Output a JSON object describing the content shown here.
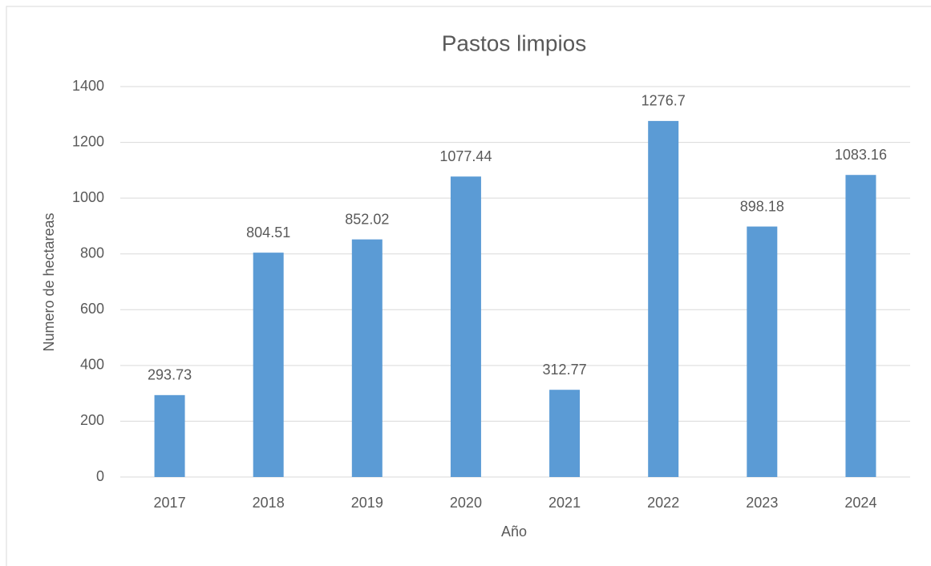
{
  "chart_data": {
    "type": "bar",
    "title": "Pastos limpios",
    "x_label": "Año",
    "y_label": "Numero de hectareas",
    "categories": [
      "2017",
      "2018",
      "2019",
      "2020",
      "2021",
      "2022",
      "2023",
      "2024"
    ],
    "values": [
      293.73,
      804.51,
      852.02,
      1077.44,
      312.77,
      1276.7,
      898.18,
      1083.16
    ],
    "color": "#5b9bd5",
    "ylim": [
      0,
      1400
    ],
    "yticks": [
      0,
      200,
      400,
      600,
      800,
      1000,
      1200,
      1400
    ],
    "grid": true
  }
}
